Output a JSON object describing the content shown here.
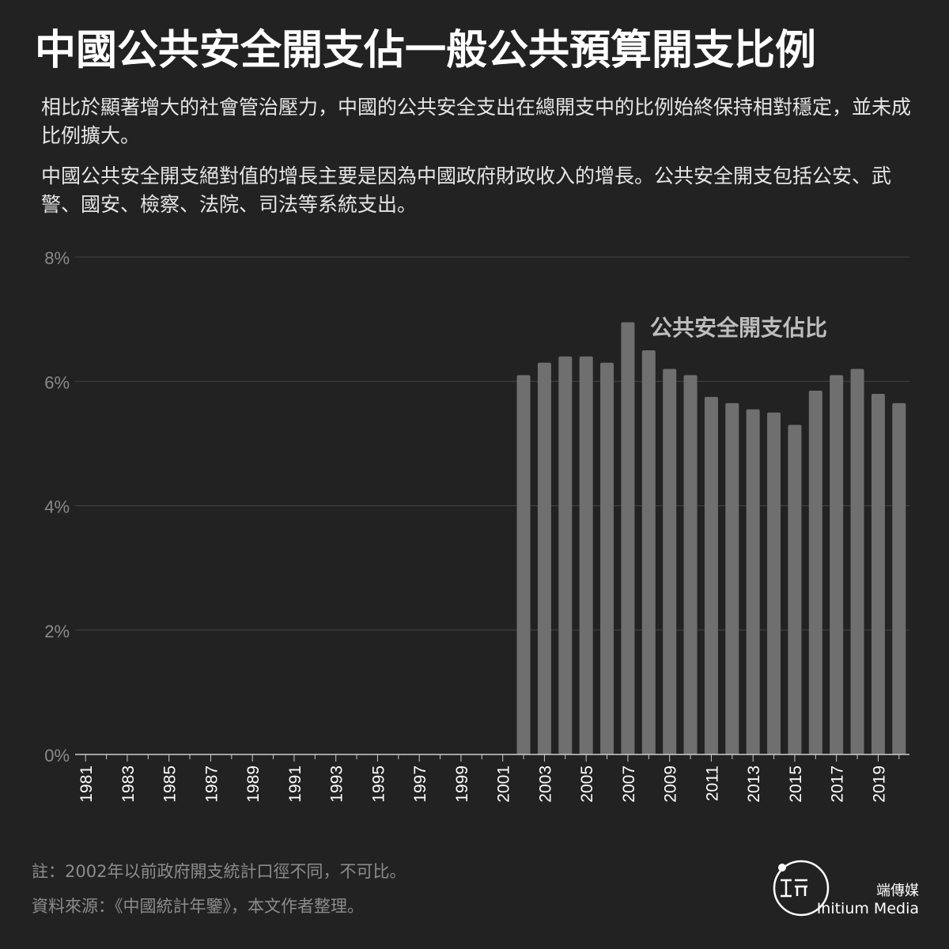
{
  "title": "中國公共安全開支佔一般公共預算開支比例",
  "description": [
    "相比於顯著增大的社會管治壓力，中國的公共安全支出在總開支中的比例始終保持相對穩定，並未成比例擴大。",
    "中國公共安全開支絕對值的增長主要是因為中國政府財政收入的增長。公共安全開支包括公安、武警、國安、檢察、法院、司法等系統支出。"
  ],
  "chart_data": {
    "type": "bar",
    "series_label": "公共安全開支佔比",
    "x": [
      1981,
      1982,
      1983,
      1984,
      1985,
      1986,
      1987,
      1988,
      1989,
      1990,
      1991,
      1992,
      1993,
      1994,
      1995,
      1996,
      1997,
      1998,
      1999,
      2000,
      2001,
      2002,
      2003,
      2004,
      2005,
      2006,
      2007,
      2008,
      2009,
      2010,
      2011,
      2012,
      2013,
      2014,
      2015,
      2016,
      2017,
      2018,
      2019,
      2020
    ],
    "values": [
      null,
      null,
      null,
      null,
      null,
      null,
      null,
      null,
      null,
      null,
      null,
      null,
      null,
      null,
      null,
      null,
      null,
      null,
      null,
      null,
      null,
      6.1,
      6.3,
      6.4,
      6.4,
      6.3,
      6.95,
      6.5,
      6.2,
      6.1,
      5.75,
      5.65,
      5.55,
      5.5,
      5.3,
      5.85,
      6.1,
      6.2,
      5.8,
      5.65
    ],
    "tick_labels_x": [
      "1981",
      "1983",
      "1985",
      "1987",
      "1989",
      "1991",
      "1993",
      "1995",
      "1997",
      "1999",
      "2001",
      "2003",
      "2005",
      "2007",
      "2009",
      "2011",
      "2013",
      "2015",
      "2017",
      "2019"
    ],
    "y_ticks": [
      "0%",
      "2%",
      "4%",
      "6%",
      "8%"
    ],
    "ylim": [
      0,
      8
    ],
    "grid": true,
    "bar_color": "#6f6f6f"
  },
  "notes": [
    "註：2002年以前政府開支統計口徑不同，不可比。",
    "資料來源：《中國統計年鑒》，本文作者整理。"
  ],
  "brand": {
    "cn": "端傳媒",
    "en": "Initium Media"
  }
}
